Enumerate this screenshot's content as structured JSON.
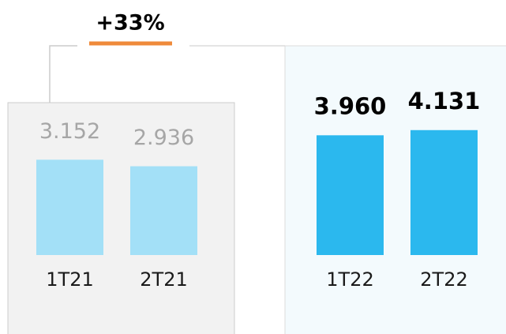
{
  "chart_data": {
    "type": "bar",
    "annotation": "+33%",
    "categories": [
      "1T21",
      "2T21",
      "1T22",
      "2T22"
    ],
    "values": [
      3.152,
      2.936,
      3.96,
      4.131
    ],
    "value_labels": [
      "3.152",
      "2.936",
      "3.960",
      "4.131"
    ],
    "colors": [
      "#a3e0f7",
      "#a3e0f7",
      "#2bb8ee",
      "#2bb8ee"
    ]
  }
}
